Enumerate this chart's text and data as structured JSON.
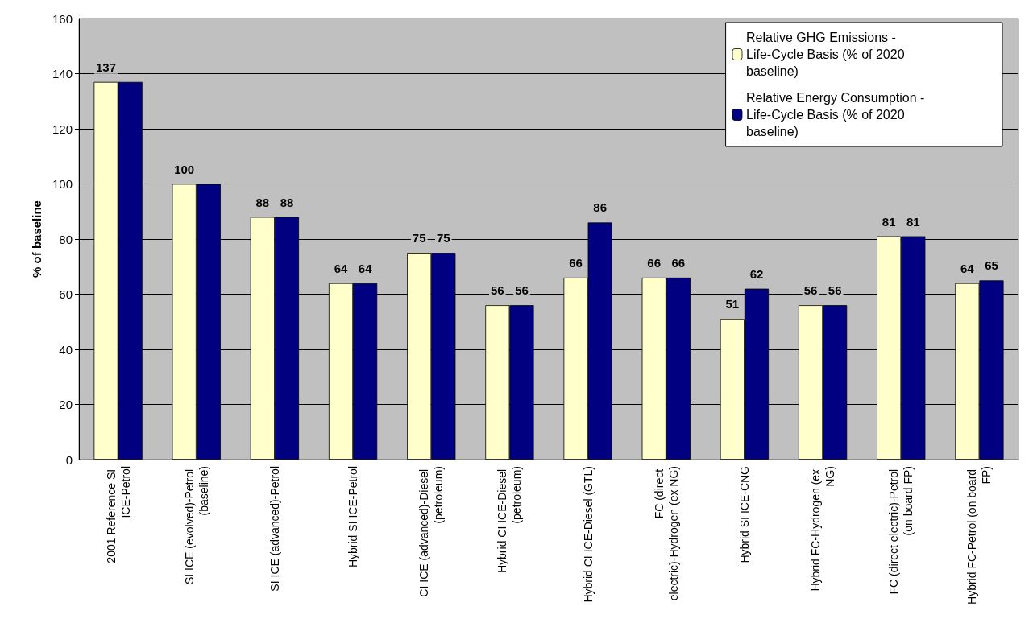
{
  "chart_data": {
    "type": "bar",
    "ylabel": "% of baseline",
    "categories": [
      "2001 Reference SI ICE-Petrol",
      "SI ICE (evolved)-Petrol (baseline)",
      "SI ICE (advanced)-Petrol",
      "Hybrid SI ICE-Petrol",
      "CI ICE (advanced)-Diesel (petroleum)",
      "Hybrid CI ICE-Diesel (petroleum)",
      "Hybrid CI ICE-Diesel (GTL)",
      "FC (direct electric)-Hydrogen (ex NG)",
      "Hybrid SI ICE-CNG",
      "Hybrid FC-Hydrogen (ex NG)",
      "FC (direct electric)-Petrol (on board FP)",
      "Hybrid FC-Petrol (on board FP)"
    ],
    "series": [
      {
        "name": "Relative GHG Emissions - Life-Cycle Basis (% of 2020 baseline)",
        "color": "#ffffcc",
        "values": [
          137,
          100,
          88,
          64,
          75,
          56,
          66,
          66,
          51,
          56,
          81,
          64
        ],
        "value_labels": [
          "137",
          "100",
          "88",
          "64",
          "75",
          "56",
          "66",
          "66",
          "51",
          "56",
          "81",
          "64"
        ]
      },
      {
        "name": "Relative Energy Consumption - Life-Cycle Basis (% of 2020 baseline)",
        "color": "#000080",
        "values": [
          137,
          100,
          88,
          64,
          75,
          56,
          86,
          66,
          62,
          56,
          81,
          65
        ],
        "value_labels": [
          null,
          null,
          "88",
          "64",
          "75",
          "56",
          "86",
          "66",
          "62",
          "56",
          "81",
          "65"
        ]
      }
    ],
    "ylim": [
      0,
      160
    ],
    "yticks": [
      0,
      20,
      40,
      60,
      80,
      100,
      120,
      140,
      160
    ],
    "grid": "y",
    "legend": "top right"
  }
}
